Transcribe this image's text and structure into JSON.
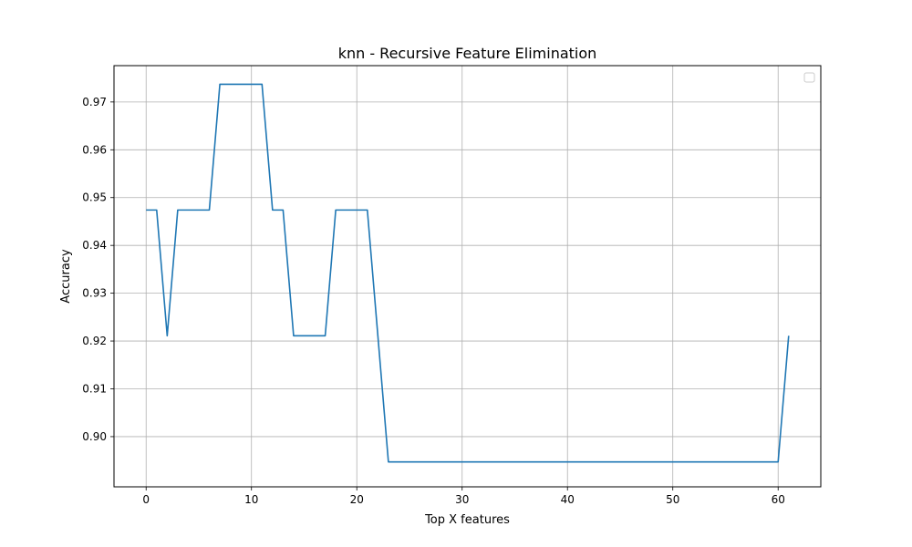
{
  "chart_data": {
    "type": "line",
    "title": "knn - Recursive Feature Elimination",
    "xlabel": "Top X features",
    "ylabel": "Accuracy",
    "xlim": [
      -3.05,
      64.05
    ],
    "ylim": [
      0.8895,
      0.9776
    ],
    "xticks": [
      0,
      10,
      20,
      30,
      40,
      50,
      60
    ],
    "yticks": [
      0.9,
      0.91,
      0.92,
      0.93,
      0.94,
      0.95,
      0.96,
      0.97
    ],
    "xtick_labels": [
      "0",
      "10",
      "20",
      "30",
      "40",
      "50",
      "60"
    ],
    "ytick_labels": [
      "0.90",
      "0.91",
      "0.92",
      "0.93",
      "0.94",
      "0.95",
      "0.96",
      "0.97"
    ],
    "grid": true,
    "legend": "top-right, empty",
    "line_color": "#1f77b4",
    "series": [
      {
        "x": [
          0,
          1,
          2,
          3,
          4,
          5,
          6,
          7,
          8,
          9,
          10,
          11,
          12,
          13,
          14,
          15,
          16,
          17,
          18,
          19,
          20,
          21,
          22,
          23,
          24,
          25,
          26,
          27,
          28,
          29,
          30,
          31,
          32,
          33,
          34,
          35,
          36,
          37,
          38,
          39,
          40,
          41,
          42,
          43,
          44,
          45,
          46,
          47,
          48,
          49,
          50,
          51,
          52,
          53,
          54,
          55,
          56,
          57,
          58,
          59,
          60,
          61
        ],
        "values": [
          0.9474,
          0.9474,
          0.9211,
          0.9474,
          0.9474,
          0.9474,
          0.9474,
          0.9737,
          0.9737,
          0.9737,
          0.9737,
          0.9737,
          0.9474,
          0.9474,
          0.9211,
          0.9211,
          0.9211,
          0.9211,
          0.9474,
          0.9474,
          0.9474,
          0.9474,
          0.9211,
          0.8947,
          0.8947,
          0.8947,
          0.8947,
          0.8947,
          0.8947,
          0.8947,
          0.8947,
          0.8947,
          0.8947,
          0.8947,
          0.8947,
          0.8947,
          0.8947,
          0.8947,
          0.8947,
          0.8947,
          0.8947,
          0.8947,
          0.8947,
          0.8947,
          0.8947,
          0.8947,
          0.8947,
          0.8947,
          0.8947,
          0.8947,
          0.8947,
          0.8947,
          0.8947,
          0.8947,
          0.8947,
          0.8947,
          0.8947,
          0.8947,
          0.8947,
          0.8947,
          0.8947,
          0.9211
        ]
      }
    ]
  }
}
